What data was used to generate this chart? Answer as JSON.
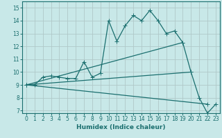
{
  "xlabel": "Humidex (Indice chaleur)",
  "xlim": [
    -0.5,
    23.5
  ],
  "ylim": [
    6.8,
    15.5
  ],
  "yticks": [
    7,
    8,
    9,
    10,
    11,
    12,
    13,
    14,
    15
  ],
  "xticks": [
    0,
    1,
    2,
    3,
    4,
    5,
    6,
    7,
    8,
    9,
    10,
    11,
    12,
    13,
    14,
    15,
    16,
    17,
    18,
    19,
    20,
    21,
    22,
    23
  ],
  "bg_color": "#c8e8e8",
  "grid_color": "#b0c8c8",
  "line_color": "#1a6e6e",
  "line1_x": [
    0,
    1,
    2,
    3,
    4,
    5,
    6,
    7,
    8,
    9,
    10,
    11,
    12,
    13,
    14,
    15,
    16,
    17,
    18,
    19,
    20,
    21,
    22,
    23
  ],
  "line1_y": [
    9.0,
    9.0,
    9.6,
    9.7,
    9.6,
    9.5,
    9.5,
    10.8,
    9.6,
    9.9,
    14.0,
    12.4,
    13.6,
    14.4,
    14.0,
    14.8,
    14.0,
    13.0,
    13.2,
    12.3,
    10.0,
    8.0,
    6.8,
    7.5
  ],
  "line2_x": [
    0,
    19
  ],
  "line2_y": [
    9.0,
    12.3
  ],
  "line3_x": [
    0,
    22
  ],
  "line3_y": [
    9.0,
    7.5
  ],
  "line4_x": [
    0,
    20
  ],
  "line4_y": [
    9.0,
    10.0
  ]
}
